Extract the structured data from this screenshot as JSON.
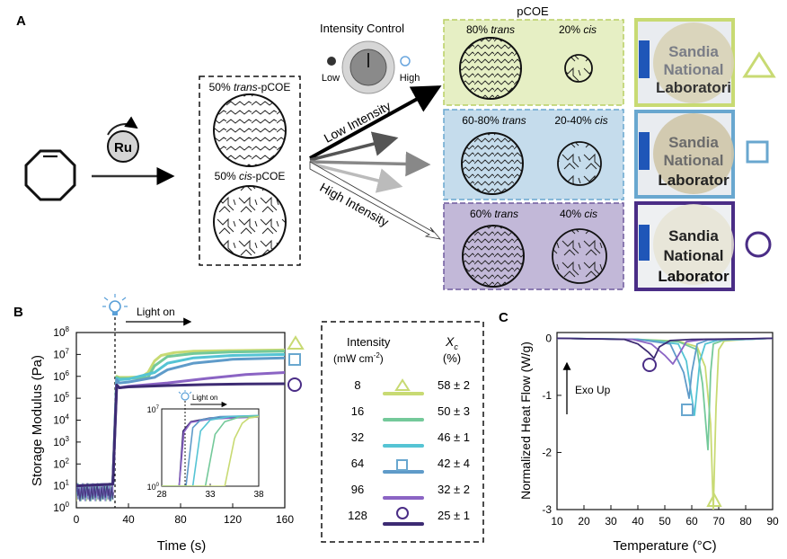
{
  "panel_a": {
    "panel_label": "A",
    "catalyst": "Ru",
    "box_trans_label_a": "50% ",
    "box_trans_label_b": "trans",
    "box_trans_label_c": "-pCOE",
    "box_cis_label_a": "50% ",
    "box_cis_label_b": "cis",
    "box_cis_label_c": "-pCOE",
    "intensity_control": "Intensity Control",
    "low": "Low",
    "high": "High",
    "low_intensity": "Low Intensity",
    "high_intensity": "High Intensity",
    "pcoe_title": "pCOE",
    "rows": [
      {
        "trans_pct": "80% ",
        "trans_word": "trans",
        "cis_pct": "20% ",
        "cis_word": "cis",
        "color": "#e6efc4",
        "border": "#b9cf63"
      },
      {
        "trans_pct": "60-80% ",
        "trans_word": "trans",
        "cis_pct": "20-40% ",
        "cis_word": "cis",
        "color": "#c5dcec",
        "border": "#69a7cf"
      },
      {
        "trans_pct": "60% ",
        "trans_word": "trans",
        "cis_pct": "40% ",
        "cis_word": "cis",
        "color": "#c2b8d8",
        "border": "#6f5a9e"
      }
    ],
    "photo_text": [
      [
        "Sandia",
        "National",
        "Laboratori"
      ],
      [
        "Sandia",
        "National",
        "Laborator"
      ],
      [
        "Sandia",
        "National",
        "Laborator"
      ]
    ],
    "photo_frame_colors": [
      "#c8da73",
      "#69a7cf",
      "#4a2d86"
    ],
    "markers": [
      "triangle",
      "square",
      "circle"
    ]
  },
  "panel_b": {
    "panel_label": "B",
    "light_on": "Light on",
    "ylabel": "Storage Modulus (Pa)",
    "xlabel": "Time (s)",
    "x_ticks": [
      "0",
      "40",
      "80",
      "120",
      "160"
    ],
    "y_ticks": [
      "10",
      "10",
      "10",
      "10",
      "10",
      "10",
      "10",
      "10",
      "10"
    ],
    "y_exps": [
      "0",
      "1",
      "2",
      "3",
      "4",
      "5",
      "6",
      "7",
      "8"
    ],
    "inset_light_on": "Light on",
    "inset_x_ticks": [
      "28",
      "33",
      "38"
    ],
    "inset_y_ticks": [
      "10",
      "10"
    ],
    "inset_y_exps": [
      "0",
      "7"
    ]
  },
  "legend": {
    "col_intensity": "Intensity",
    "col_units_a": "(mW cm",
    "col_units_sup": "-2",
    "col_units_b": ")",
    "col_xc": "X",
    "col_xc_sub": "c",
    "col_pct": "(%)",
    "rows": [
      {
        "intensity": "8",
        "xc": "58 ± 2",
        "color": "#c8da73"
      },
      {
        "intensity": "16",
        "xc": "50 ± 3",
        "color": "#74c99a"
      },
      {
        "intensity": "32",
        "xc": "46 ± 1",
        "color": "#55c4d4"
      },
      {
        "intensity": "64",
        "xc": "42 ± 4",
        "color": "#5f9bc9"
      },
      {
        "intensity": "96",
        "xc": "32 ± 2",
        "color": "#8b64c4"
      },
      {
        "intensity": "128",
        "xc": "25 ± 1",
        "color": "#3d2b73"
      }
    ]
  },
  "panel_c": {
    "panel_label": "C",
    "ylabel": "Normalized Heat Flow (W/g)",
    "xlabel": "Temperature (°C)",
    "x_ticks": [
      "10",
      "20",
      "30",
      "40",
      "50",
      "60",
      "70",
      "80",
      "90"
    ],
    "y_ticks": [
      "0",
      "-1",
      "-2",
      "-3"
    ],
    "exo_up": "Exo Up"
  },
  "chart_data": [
    {
      "type": "line",
      "panel": "B",
      "xlabel": "Time (s)",
      "ylabel": "Storage Modulus (Pa)",
      "xlim": [
        0,
        160
      ],
      "ylim": [
        1,
        100000000
      ],
      "yscale": "log",
      "light_on_x": 30,
      "series": [
        {
          "name": "8",
          "color": "#c8da73",
          "x": [
            0,
            28,
            31,
            33,
            40,
            50,
            55,
            60,
            65,
            75,
            90,
            120,
            160
          ],
          "y": [
            10,
            12,
            1000000,
            900000,
            900000,
            950000,
            1500000,
            5000000,
            9000000,
            12000000,
            14000000,
            15000000,
            16000000
          ]
        },
        {
          "name": "16",
          "color": "#74c99a",
          "x": [
            0,
            28,
            31,
            33,
            40,
            55,
            60,
            70,
            90,
            120,
            160
          ],
          "y": [
            10,
            12,
            900000,
            800000,
            800000,
            900000,
            3000000,
            8000000,
            11000000,
            13000000,
            14000000
          ]
        },
        {
          "name": "32",
          "color": "#55c4d4",
          "x": [
            0,
            28,
            31,
            33,
            40,
            60,
            70,
            90,
            120,
            160
          ],
          "y": [
            10,
            12,
            800000,
            700000,
            750000,
            1500000,
            4000000,
            7000000,
            9000000,
            10000000
          ]
        },
        {
          "name": "64",
          "color": "#5f9bc9",
          "x": [
            0,
            28,
            31,
            33,
            40,
            60,
            70,
            90,
            120,
            160
          ],
          "y": [
            10,
            12,
            700000,
            500000,
            550000,
            900000,
            2000000,
            4000000,
            6000000,
            7000000
          ]
        },
        {
          "name": "96",
          "color": "#8b64c4",
          "x": [
            0,
            28,
            31,
            33,
            40,
            70,
            100,
            130,
            160
          ],
          "y": [
            10,
            12,
            400000,
            300000,
            350000,
            500000,
            800000,
            1200000,
            1500000
          ]
        },
        {
          "name": "128",
          "color": "#3d2b73",
          "x": [
            0,
            28,
            31,
            33,
            40,
            70,
            100,
            130,
            160
          ],
          "y": [
            10,
            12,
            400000,
            300000,
            330000,
            380000,
            420000,
            450000,
            460000
          ]
        }
      ]
    },
    {
      "type": "line",
      "panel": "B inset",
      "xlim": [
        28,
        38
      ],
      "ylim": [
        1,
        10000000
      ],
      "yscale": "log",
      "series": [
        {
          "name": "128",
          "color": "#3d2b73",
          "x": [
            28,
            29.8,
            30.2,
            31,
            33,
            36,
            38
          ],
          "y": [
            1,
            1,
            100000,
            700000,
            1500000,
            1800000,
            2000000
          ]
        },
        {
          "name": "96",
          "color": "#8b64c4",
          "x": [
            28,
            29.8,
            30.3,
            31,
            33,
            36,
            38
          ],
          "y": [
            1,
            1,
            80000,
            600000,
            1200000,
            1600000,
            1800000
          ]
        },
        {
          "name": "64",
          "color": "#5f9bc9",
          "x": [
            28,
            30.5,
            31.2,
            32,
            34,
            38
          ],
          "y": [
            1,
            1,
            200000,
            1000000,
            2000000,
            2500000
          ]
        },
        {
          "name": "32",
          "color": "#55c4d4",
          "x": [
            28,
            31.2,
            32,
            33,
            35,
            38
          ],
          "y": [
            1,
            1,
            100000,
            1000000,
            2000000,
            2500000
          ]
        },
        {
          "name": "16",
          "color": "#74c99a",
          "x": [
            28,
            32.5,
            33.5,
            34.5,
            36,
            38
          ],
          "y": [
            1,
            1,
            50000,
            700000,
            1800000,
            2200000
          ]
        },
        {
          "name": "8",
          "color": "#c8da73",
          "x": [
            28,
            34.5,
            35.5,
            36.3,
            37,
            38
          ],
          "y": [
            1,
            1,
            20000,
            500000,
            1500000,
            2000000
          ]
        }
      ]
    },
    {
      "type": "line",
      "panel": "C",
      "xlabel": "Temperature (°C)",
      "ylabel": "Normalized Heat Flow (W/g)",
      "xlim": [
        10,
        90
      ],
      "ylim": [
        -3,
        0.1
      ],
      "series": [
        {
          "name": "8",
          "color": "#c8da73",
          "x": [
            10,
            40,
            55,
            62,
            65,
            67,
            68,
            69,
            70,
            72,
            80,
            90
          ],
          "y": [
            0,
            -0.02,
            -0.05,
            -0.15,
            -0.5,
            -1.5,
            -3.0,
            -1.2,
            -0.2,
            -0.05,
            -0.02,
            0
          ]
        },
        {
          "name": "16",
          "color": "#74c99a",
          "x": [
            10,
            40,
            55,
            62,
            64,
            66,
            67,
            68,
            72,
            80,
            90
          ],
          "y": [
            0,
            -0.02,
            -0.06,
            -0.2,
            -0.8,
            -1.95,
            -0.6,
            -0.1,
            -0.03,
            -0.02,
            0
          ]
        },
        {
          "name": "32",
          "color": "#55c4d4",
          "x": [
            10,
            40,
            55,
            58,
            61,
            63,
            65,
            70,
            80,
            90
          ],
          "y": [
            0,
            -0.02,
            -0.1,
            -0.4,
            -1.35,
            -0.4,
            -0.1,
            -0.03,
            -0.02,
            0
          ]
        },
        {
          "name": "64",
          "color": "#5f9bc9",
          "x": [
            10,
            40,
            52,
            57,
            59,
            60,
            62,
            66,
            80,
            90
          ],
          "y": [
            0,
            -0.02,
            -0.1,
            -0.6,
            -1.05,
            -0.6,
            -0.1,
            -0.03,
            -0.02,
            0
          ]
        },
        {
          "name": "96",
          "color": "#8b64c4",
          "x": [
            10,
            38,
            45,
            50,
            53,
            55,
            58,
            65,
            80,
            90
          ],
          "y": [
            0,
            -0.02,
            -0.1,
            -0.3,
            -0.45,
            -0.3,
            -0.06,
            -0.02,
            -0.01,
            0
          ]
        },
        {
          "name": "128",
          "color": "#3d2b73",
          "x": [
            10,
            35,
            40,
            44,
            46,
            48,
            52,
            60,
            80,
            90
          ],
          "y": [
            0,
            -0.02,
            -0.1,
            -0.25,
            -0.35,
            -0.15,
            -0.04,
            -0.02,
            -0.01,
            0
          ]
        }
      ]
    }
  ]
}
